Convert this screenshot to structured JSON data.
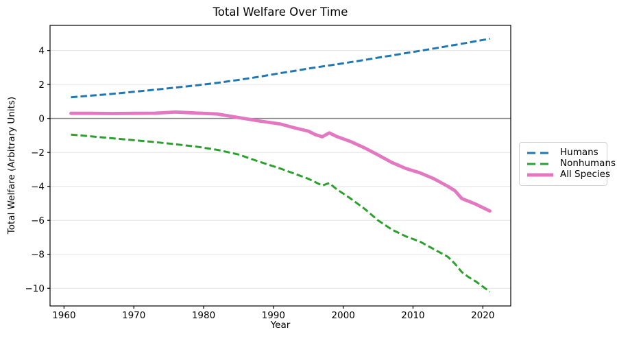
{
  "chart_data": {
    "type": "line",
    "title": "Total Welfare Over Time",
    "xlabel": "Year",
    "ylabel": "Total Welfare (Arbitrary Units)",
    "xlim": [
      1958,
      2024
    ],
    "ylim": [
      -11.04,
      5.48
    ],
    "x_ticks": [
      1960,
      1970,
      1980,
      1990,
      2000,
      2010,
      2020
    ],
    "x_tick_labels": [
      "1960",
      "1970",
      "1980",
      "1990",
      "2000",
      "2010",
      "2020"
    ],
    "y_ticks": [
      4,
      2,
      0,
      -2,
      -4,
      -6,
      -8,
      -10
    ],
    "y_tick_labels": [
      "4",
      "2",
      "0",
      "−2",
      "−4",
      "−6",
      "−8",
      "−10"
    ],
    "grid": "horizontal",
    "grid_color": "#e3e3e3",
    "zero_line": {
      "y": 0,
      "color": "#808080",
      "width": 1.5
    },
    "spine_color": "#000000",
    "background_color": "#ffffff",
    "legend_position": "center right, outside axes",
    "x": [
      1961,
      1964,
      1967,
      1970,
      1973,
      1976,
      1979,
      1982,
      1985,
      1988,
      1991,
      1993,
      1995,
      1996,
      1997,
      1998,
      1999,
      2001,
      2003,
      2005,
      2007,
      2009,
      2011,
      2013,
      2015,
      2016,
      2017,
      2018,
      2019,
      2020,
      2021
    ],
    "series": [
      {
        "name": "Humans",
        "color": "#1f77b4",
        "line_style": "dashed",
        "line_width": 3,
        "values": [
          1.25,
          1.35,
          1.45,
          1.57,
          1.69,
          1.82,
          1.95,
          2.1,
          2.27,
          2.46,
          2.67,
          2.8,
          2.94,
          3.0,
          3.06,
          3.12,
          3.18,
          3.31,
          3.44,
          3.58,
          3.71,
          3.85,
          3.98,
          4.12,
          4.26,
          4.33,
          4.4,
          4.47,
          4.55,
          4.62,
          4.7
        ]
      },
      {
        "name": "Nonhumans",
        "color": "#2ca02c",
        "line_style": "dashed",
        "line_width": 3,
        "values": [
          -0.95,
          -1.06,
          -1.17,
          -1.28,
          -1.39,
          -1.52,
          -1.66,
          -1.85,
          -2.12,
          -2.55,
          -2.95,
          -3.25,
          -3.55,
          -3.75,
          -3.95,
          -3.8,
          -4.15,
          -4.7,
          -5.3,
          -6.0,
          -6.55,
          -6.95,
          -7.25,
          -7.7,
          -8.15,
          -8.55,
          -9.05,
          -9.35,
          -9.6,
          -9.9,
          -10.2
        ]
      },
      {
        "name": "All Species",
        "color": "#e377c2",
        "line_style": "solid",
        "line_width": 4.8,
        "values": [
          0.3,
          0.3,
          0.29,
          0.3,
          0.31,
          0.38,
          0.32,
          0.26,
          0.05,
          -0.15,
          -0.33,
          -0.55,
          -0.75,
          -0.95,
          -1.08,
          -0.85,
          -1.05,
          -1.35,
          -1.72,
          -2.15,
          -2.6,
          -2.95,
          -3.2,
          -3.55,
          -4.0,
          -4.25,
          -4.72,
          -4.88,
          -5.05,
          -5.25,
          -5.45
        ]
      }
    ]
  }
}
